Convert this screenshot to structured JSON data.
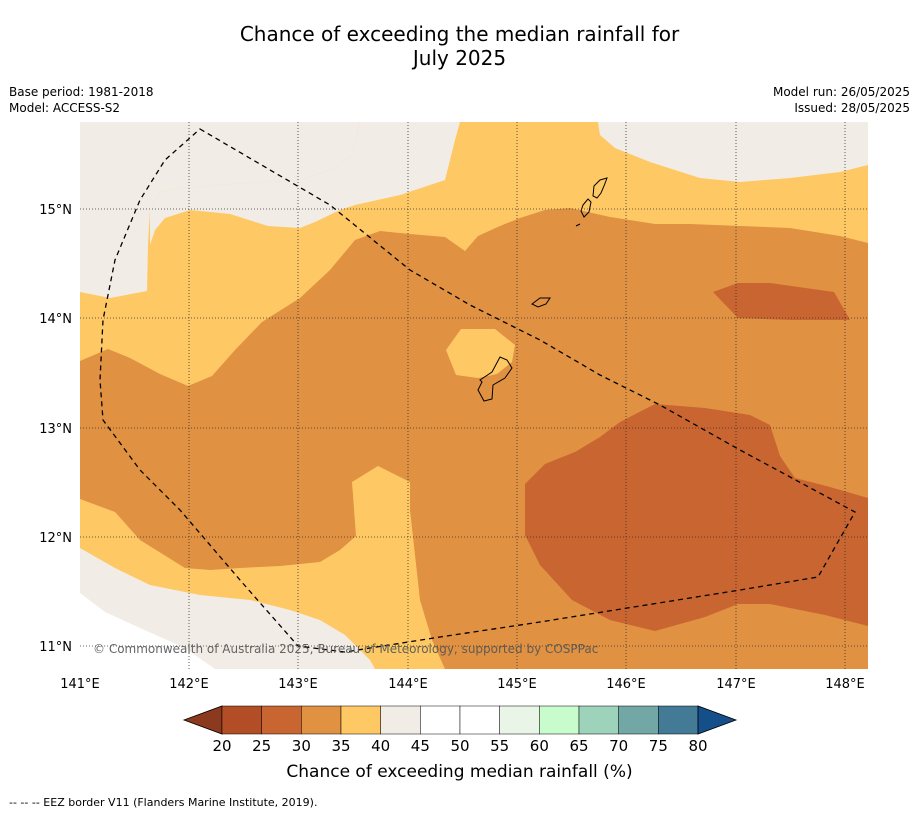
{
  "title": {
    "line1": "Chance of exceeding the median rainfall for",
    "line2": "July 2025"
  },
  "meta": {
    "base_period": "Base period: 1981-2018",
    "model": "Model: ACCESS-S2",
    "model_run": "Model run: 26/05/2025",
    "issued": "Issued: 28/05/2025"
  },
  "map": {
    "lon_ticks": [
      "141°E",
      "142°E",
      "143°E",
      "144°E",
      "145°E",
      "146°E",
      "147°E",
      "148°E"
    ],
    "lat_ticks": [
      "15°N",
      "14°N",
      "13°N",
      "12°N",
      "11°N"
    ],
    "copyright": "© Commonwealth of Australia 2025, Bureau of Meteorology, supported by COSPPac",
    "colors": {
      "band_35_40": "#fec964",
      "band_30_35": "#e09142",
      "band_25_30": "#c96531",
      "band_40_45": "#f2ece6",
      "land": "#ffffff"
    }
  },
  "colorbar": {
    "ticks": [
      "20",
      "25",
      "30",
      "35",
      "40",
      "45",
      "50",
      "55",
      "60",
      "65",
      "70",
      "75",
      "80"
    ],
    "colors": [
      "#8b3a1e",
      "#b24d25",
      "#c96531",
      "#e09142",
      "#fec964",
      "#f2ece6",
      "#ffffff",
      "#ffffff",
      "#e9f5e7",
      "#c8fccc",
      "#9dd2bb",
      "#72a7a6",
      "#437b97",
      "#154f89"
    ],
    "label": "Chance of exceeding median rainfall (%)"
  },
  "footnote": "--  --  -- EEZ border V11 (Flanders Marine Institute, 2019)."
}
